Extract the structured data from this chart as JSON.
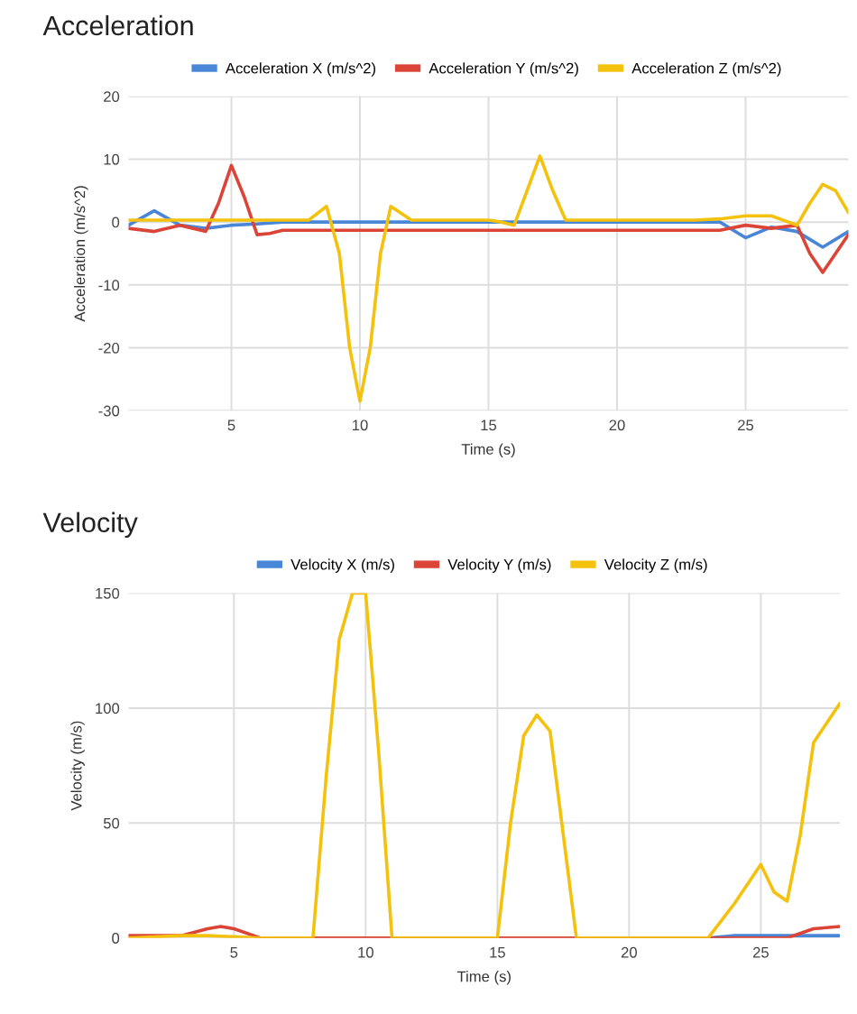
{
  "chart_data": [
    {
      "type": "line",
      "title": "Acceleration",
      "xlabel": "Time (s)",
      "ylabel": "Acceleration (m/s^2)",
      "xlim": [
        1,
        29
      ],
      "ylim": [
        -30,
        20
      ],
      "xticks": [
        5,
        10,
        15,
        20,
        25
      ],
      "yticks": [
        -30,
        -20,
        -10,
        0,
        10,
        20
      ],
      "grid": true,
      "legend": "top",
      "line_style": "solid",
      "series": [
        {
          "name": "Acceleration X (m/s^2)",
          "color": "#4a86d8",
          "x": [
            1,
            2,
            3,
            4,
            5,
            6,
            7,
            8,
            9,
            10,
            11,
            12,
            13,
            14,
            15,
            16,
            17,
            18,
            19,
            20,
            21,
            22,
            23,
            24,
            25,
            26,
            27,
            28,
            29
          ],
          "values": [
            -0.5,
            1.8,
            -0.5,
            -1,
            -0.5,
            -0.3,
            0,
            0,
            0,
            0,
            0,
            0,
            0,
            0,
            0,
            0,
            0,
            0,
            0,
            0,
            0,
            0,
            0,
            0,
            -2.5,
            -0.8,
            -1.5,
            -4,
            -1.5
          ]
        },
        {
          "name": "Acceleration Y (m/s^2)",
          "color": "#db4437",
          "x": [
            1,
            2,
            3,
            4,
            4.5,
            5,
            5.5,
            6,
            6.5,
            7,
            8,
            9,
            10,
            11,
            12,
            13,
            14,
            15,
            16,
            17,
            18,
            19,
            20,
            21,
            22,
            23,
            24,
            25,
            26,
            27,
            27.5,
            28,
            29
          ],
          "values": [
            -1,
            -1.5,
            -0.5,
            -1.5,
            3,
            9,
            4,
            -2,
            -1.8,
            -1.3,
            -1.3,
            -1.3,
            -1.3,
            -1.3,
            -1.3,
            -1.3,
            -1.3,
            -1.3,
            -1.3,
            -1.3,
            -1.3,
            -1.3,
            -1.3,
            -1.3,
            -1.3,
            -1.3,
            -1.3,
            -0.5,
            -1,
            -0.5,
            -5,
            -8,
            -2
          ]
        },
        {
          "name": "Acceleration Z (m/s^2)",
          "color": "#f4c20d",
          "x": [
            1,
            2,
            3,
            4,
            5,
            6,
            7,
            8,
            8.7,
            9.2,
            9.6,
            10,
            10.4,
            10.8,
            11.2,
            12,
            13,
            14,
            15,
            15.5,
            16,
            16.5,
            17,
            17.5,
            18,
            19,
            20,
            21,
            22,
            23,
            24,
            25,
            26,
            27,
            27.5,
            28,
            28.5,
            29
          ],
          "values": [
            0.3,
            0.3,
            0.3,
            0.3,
            0.3,
            0.3,
            0.3,
            0.3,
            2.5,
            -5,
            -20,
            -28.5,
            -20,
            -5,
            2.5,
            0.3,
            0.3,
            0.3,
            0.3,
            0,
            -0.5,
            5,
            10.5,
            5,
            0.3,
            0.3,
            0.3,
            0.3,
            0.3,
            0.3,
            0.5,
            1,
            1,
            -0.5,
            3,
            6,
            5,
            1.5
          ]
        }
      ]
    },
    {
      "type": "line",
      "title": "Velocity",
      "xlabel": "Time (s)",
      "ylabel": "Velocity (m/s)",
      "xlim": [
        1,
        28
      ],
      "ylim": [
        0,
        150
      ],
      "xticks": [
        5,
        10,
        15,
        20,
        25
      ],
      "yticks": [
        0,
        50,
        100,
        150
      ],
      "grid": true,
      "legend": "top",
      "line_style": "solid",
      "series": [
        {
          "name": "Velocity X (m/s)",
          "color": "#4a86d8",
          "x": [
            23,
            24,
            25,
            26,
            27,
            28
          ],
          "values": [
            0,
            1,
            1,
            1,
            1,
            1
          ]
        },
        {
          "name": "Velocity Y (m/s)",
          "color": "#db4437",
          "x": [
            1,
            3,
            4,
            4.5,
            5,
            6,
            8,
            12,
            16,
            20,
            24,
            26,
            27,
            28
          ],
          "values": [
            1,
            1,
            4,
            5,
            4,
            0,
            0,
            0,
            0,
            0,
            0,
            0,
            4,
            5
          ]
        },
        {
          "name": "Velocity Z (m/s)",
          "color": "#f4c20d",
          "x": [
            1,
            3,
            4,
            5,
            6,
            7,
            8,
            8.5,
            9,
            9.5,
            10,
            10.5,
            11,
            12,
            14,
            15,
            15.5,
            16,
            16.5,
            17,
            17.5,
            18,
            19,
            21,
            23,
            24,
            25,
            25.5,
            26,
            26.5,
            27,
            28
          ],
          "values": [
            0,
            1,
            1,
            0.5,
            0,
            0,
            0,
            70,
            130,
            150,
            150,
            80,
            0,
            0,
            0,
            0,
            50,
            88,
            97,
            90,
            45,
            0,
            0,
            0,
            0,
            15,
            32,
            20,
            16,
            45,
            85,
            102
          ]
        }
      ]
    }
  ]
}
